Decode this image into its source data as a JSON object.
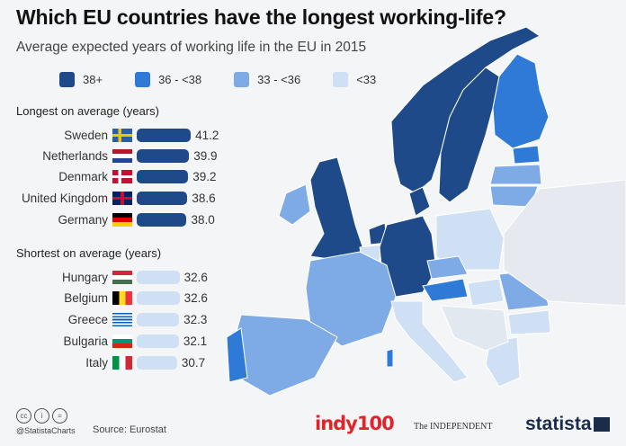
{
  "title": "Which EU countries have the longest working-life?",
  "subtitle": "Average expected years of working life in the EU in 2015",
  "colors": {
    "c38plus": "#1f4a8a",
    "c36_38": "#2e7ad6",
    "c33_36": "#7eaae6",
    "c_lt33": "#cfe0f5"
  },
  "legend": [
    {
      "label": "38+",
      "color": "#1f4a8a"
    },
    {
      "label": "36 - <38",
      "color": "#2e7ad6"
    },
    {
      "label": "33 - <36",
      "color": "#7eaae6"
    },
    {
      "label": "<33",
      "color": "#cfe0f5"
    }
  ],
  "chart_data": {
    "type": "bar",
    "title": "Which EU countries have the longest working-life?",
    "unit": "years",
    "groups": [
      {
        "heading": "Longest on average (years)",
        "categories": [
          "Sweden",
          "Netherlands",
          "Denmark",
          "United Kingdom",
          "Germany"
        ],
        "values": [
          41.2,
          39.9,
          39.2,
          38.6,
          38.0
        ],
        "labels": [
          "41.2",
          "39.9",
          "39.2",
          "38.6",
          "38.0"
        ],
        "color": "#1f4a8a"
      },
      {
        "heading": "Shortest on average (years)",
        "categories": [
          "Hungary",
          "Belgium",
          "Greece",
          "Bulgaria",
          "Italy"
        ],
        "values": [
          32.6,
          32.6,
          32.3,
          32.1,
          30.7
        ],
        "labels": [
          "32.6",
          "32.6",
          "32.3",
          "32.1",
          "30.7"
        ],
        "color": "#cfe0f5"
      }
    ]
  },
  "footer": {
    "handle": "@StatistaCharts",
    "source": "Source: Eurostat",
    "logo1": "indy100",
    "logo2": "The INDEPENDENT",
    "logo3": "statista"
  }
}
